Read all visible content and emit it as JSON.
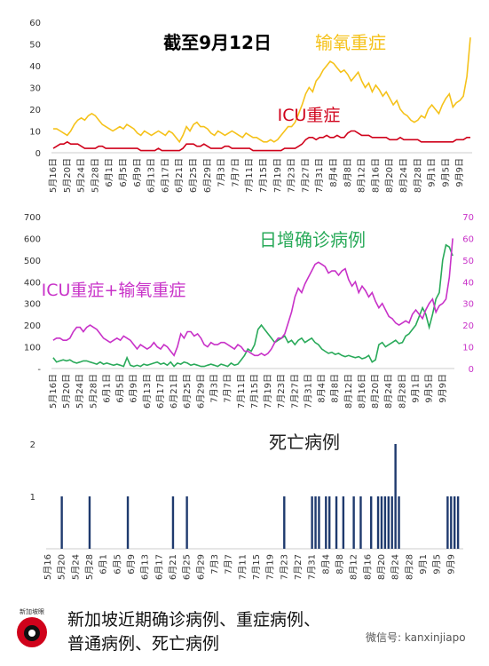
{
  "chart_data": [
    {
      "type": "line",
      "annotations": [
        "截至9月12日",
        "输氧重症",
        "ICU重症"
      ],
      "categories": [
        "5月16日",
        null,
        null,
        null,
        "5月20日",
        null,
        null,
        null,
        "5月24日",
        null,
        null,
        null,
        "5月28日",
        null,
        null,
        null,
        "6月1日",
        null,
        null,
        null,
        "6月5日",
        null,
        null,
        null,
        "6月9日",
        null,
        null,
        null,
        "6月13日",
        null,
        null,
        null,
        "6月17日",
        null,
        null,
        null,
        "6月21日",
        null,
        null,
        null,
        "6月25日",
        null,
        null,
        null,
        "6月29日",
        null,
        null,
        null,
        "7月3日",
        null,
        null,
        null,
        "7月7日",
        null,
        null,
        null,
        "7月11日",
        null,
        null,
        null,
        "7月15日",
        null,
        null,
        null,
        "7月19日",
        null,
        null,
        null,
        "7月23日",
        null,
        null,
        null,
        "7月27日",
        null,
        null,
        null,
        "7月31日",
        null,
        null,
        null,
        "8月4日",
        null,
        null,
        null,
        "8月8日",
        null,
        null,
        null,
        "8月12日",
        null,
        null,
        null,
        "8月16日",
        null,
        null,
        null,
        "8月20日",
        null,
        null,
        null,
        "8月24日",
        null,
        null,
        null,
        "8月28日",
        null,
        null,
        null,
        "9月1日",
        null,
        null,
        null,
        "9月5日",
        null,
        null,
        null,
        "9月9日",
        null,
        null,
        null
      ],
      "ylim": [
        0,
        60
      ],
      "yticks": [
        0,
        10,
        20,
        30,
        40,
        50,
        60
      ],
      "series": [
        {
          "name": "输氧重症",
          "color": "#f5c21b",
          "values": [
            11,
            11,
            10,
            9,
            8,
            10,
            13,
            15,
            16,
            15,
            17,
            18,
            17,
            15,
            13,
            12,
            11,
            10,
            11,
            12,
            11,
            13,
            12,
            11,
            9,
            8,
            10,
            9,
            8,
            9,
            10,
            9,
            8,
            10,
            9,
            7,
            5,
            8,
            12,
            10,
            13,
            14,
            12,
            12,
            11,
            9,
            8,
            10,
            9,
            8,
            9,
            10,
            9,
            8,
            7,
            9,
            8,
            7,
            7,
            6,
            5,
            5,
            6,
            5,
            6,
            8,
            10,
            12,
            12,
            14,
            18,
            22,
            27,
            30,
            28,
            33,
            35,
            38,
            40,
            42,
            41,
            39,
            37,
            38,
            36,
            33,
            35,
            37,
            33,
            30,
            32,
            28,
            31,
            29,
            26,
            28,
            25,
            22,
            24,
            20,
            18,
            17,
            15,
            14,
            15,
            17,
            16,
            20,
            22,
            20,
            18,
            22,
            25,
            27,
            21,
            23,
            24,
            26,
            35,
            53
          ]
        },
        {
          "name": "ICU重症",
          "color": "#d0021b",
          "values": [
            2,
            3,
            4,
            4,
            5,
            4,
            4,
            4,
            3,
            2,
            2,
            2,
            2,
            3,
            3,
            2,
            2,
            2,
            2,
            2,
            2,
            2,
            2,
            2,
            2,
            1,
            1,
            1,
            1,
            1,
            2,
            1,
            1,
            1,
            1,
            1,
            1,
            2,
            4,
            4,
            4,
            3,
            3,
            4,
            3,
            2,
            2,
            2,
            2,
            3,
            3,
            2,
            2,
            2,
            2,
            2,
            2,
            1,
            1,
            1,
            1,
            1,
            1,
            1,
            1,
            1,
            2,
            2,
            2,
            2,
            3,
            4,
            6,
            7,
            7,
            6,
            7,
            7,
            8,
            7,
            7,
            8,
            7,
            7,
            9,
            10,
            10,
            9,
            8,
            8,
            8,
            7,
            7,
            7,
            7,
            7,
            6,
            6,
            6,
            7,
            6,
            6,
            6,
            6,
            6,
            5,
            5,
            5,
            5,
            5,
            5,
            5,
            5,
            5,
            5,
            6,
            6,
            6,
            7,
            7
          ]
        }
      ]
    },
    {
      "type": "line",
      "annotations": [
        "日增确诊病例",
        "ICU重症+输氧重症"
      ],
      "categories": [
        "5月16日",
        null,
        null,
        null,
        "5月20日",
        null,
        null,
        null,
        "5月24日",
        null,
        null,
        null,
        "5月28日",
        null,
        null,
        null,
        "6月1日",
        null,
        null,
        null,
        "6月5日",
        null,
        null,
        null,
        "6月9日",
        null,
        null,
        null,
        "6月13日",
        null,
        null,
        null,
        "6月17日",
        null,
        null,
        null,
        "6月21日",
        null,
        null,
        null,
        "6月25日",
        null,
        null,
        null,
        "6月29日",
        null,
        null,
        null,
        "7月3日",
        null,
        null,
        null,
        "7月7日",
        null,
        null,
        null,
        "7月11日",
        null,
        null,
        null,
        "7月15日",
        null,
        null,
        null,
        "7月19日",
        null,
        null,
        null,
        "7月23日",
        null,
        null,
        null,
        "7月27日",
        null,
        null,
        null,
        "7月31日",
        null,
        null,
        null,
        "8月4日",
        null,
        null,
        null,
        "8月8日",
        null,
        null,
        null,
        "8月12日",
        null,
        null,
        null,
        "8月16日",
        null,
        null,
        null,
        "8月20日",
        null,
        null,
        null,
        "8月24日",
        null,
        null,
        null,
        "8月28日",
        null,
        null,
        null,
        "9月1日",
        null,
        null,
        null,
        "9月5日",
        null,
        null,
        null,
        "9月9日",
        null,
        null,
        null
      ],
      "ylim": [
        0,
        700
      ],
      "yticks": [
        {
          "value": 0,
          "label": "-"
        },
        100,
        200,
        300,
        400,
        500,
        600,
        700
      ],
      "y2lim": [
        0,
        70
      ],
      "y2ticks": [
        0,
        10,
        20,
        30,
        40,
        50,
        60,
        70
      ],
      "series": [
        {
          "name": "日增确诊病例",
          "color": "#2aaa5a",
          "values": [
            50,
            30,
            35,
            40,
            35,
            40,
            30,
            25,
            30,
            35,
            35,
            30,
            25,
            20,
            30,
            20,
            25,
            20,
            15,
            20,
            15,
            10,
            50,
            15,
            10,
            15,
            10,
            20,
            15,
            20,
            25,
            30,
            20,
            25,
            15,
            30,
            10,
            25,
            20,
            30,
            25,
            15,
            20,
            15,
            10,
            10,
            15,
            20,
            15,
            10,
            20,
            15,
            10,
            25,
            15,
            20,
            40,
            60,
            90,
            80,
            110,
            180,
            200,
            180,
            160,
            140,
            120,
            130,
            140,
            150,
            120,
            130,
            110,
            130,
            140,
            120,
            130,
            140,
            120,
            110,
            90,
            80,
            70,
            75,
            65,
            70,
            60,
            55,
            60,
            55,
            50,
            55,
            45,
            50,
            60,
            30,
            40,
            110,
            120,
            100,
            110,
            120,
            130,
            115,
            120,
            150,
            160,
            180,
            200,
            240,
            280,
            250,
            190,
            250,
            320,
            350,
            500,
            570,
            560,
            520
          ]
        },
        {
          "name": "ICU重症+输氧重症",
          "color": "#c832c8",
          "axis": "y2",
          "values": [
            13,
            14,
            14,
            13,
            13,
            14,
            17,
            19,
            19,
            17,
            19,
            20,
            19,
            18,
            16,
            14,
            13,
            12,
            13,
            14,
            13,
            15,
            14,
            13,
            11,
            9,
            11,
            10,
            9,
            10,
            12,
            10,
            9,
            11,
            10,
            8,
            6,
            10,
            16,
            14,
            17,
            17,
            15,
            16,
            14,
            11,
            10,
            12,
            11,
            11,
            12,
            12,
            11,
            10,
            9,
            11,
            10,
            8,
            8,
            7,
            6,
            6,
            7,
            6,
            7,
            9,
            12,
            14,
            14,
            16,
            21,
            26,
            33,
            37,
            35,
            39,
            42,
            45,
            48,
            49,
            48,
            47,
            44,
            45,
            45,
            43,
            45,
            46,
            41,
            38,
            40,
            35,
            38,
            36,
            33,
            35,
            31,
            28,
            30,
            27,
            24,
            23,
            21,
            20,
            21,
            22,
            21,
            25,
            27,
            25,
            23,
            27,
            30,
            32,
            26,
            29,
            30,
            32,
            42,
            60
          ]
        }
      ]
    },
    {
      "type": "bar",
      "annotations": [
        "死亡病例"
      ],
      "categories": [
        "5月16",
        null,
        null,
        null,
        "5月20",
        null,
        null,
        null,
        "5月24",
        null,
        null,
        null,
        "5月28",
        null,
        null,
        null,
        "6月1",
        null,
        null,
        null,
        "6月5",
        null,
        null,
        null,
        "6月9",
        null,
        null,
        null,
        "6月13",
        null,
        null,
        null,
        "6月17",
        null,
        null,
        null,
        "6月21",
        null,
        null,
        null,
        "6月25",
        null,
        null,
        null,
        "6月29",
        null,
        null,
        null,
        "7月3",
        null,
        null,
        null,
        "7月7",
        null,
        null,
        null,
        "7月11",
        null,
        null,
        null,
        "7月15",
        null,
        null,
        null,
        "7月19",
        null,
        null,
        null,
        "7月23",
        null,
        null,
        null,
        "7月27",
        null,
        null,
        null,
        "7月31",
        null,
        null,
        null,
        "8月4",
        null,
        null,
        null,
        "8月8",
        null,
        null,
        null,
        "8月12",
        null,
        null,
        null,
        "8月16",
        null,
        null,
        null,
        "8月20",
        null,
        null,
        null,
        "8月24",
        null,
        null,
        null,
        "8月28",
        null,
        null,
        null,
        "9月1",
        null,
        null,
        null,
        "9月5",
        null,
        null,
        null,
        "9月9",
        null,
        null,
        null
      ],
      "ylim": [
        0,
        2
      ],
      "yticks": [
        1,
        2
      ],
      "series": [
        {
          "name": "死亡病例",
          "color": "#1f3a6e",
          "values": [
            0,
            0,
            0,
            0,
            1,
            0,
            0,
            0,
            0,
            0,
            0,
            0,
            1,
            0,
            0,
            0,
            0,
            0,
            0,
            0,
            0,
            0,
            0,
            1,
            0,
            0,
            0,
            0,
            0,
            0,
            0,
            0,
            0,
            0,
            0,
            0,
            1,
            0,
            0,
            0,
            1,
            0,
            0,
            0,
            0,
            0,
            0,
            0,
            0,
            0,
            0,
            0,
            0,
            0,
            0,
            0,
            0,
            0,
            0,
            0,
            0,
            0,
            0,
            0,
            0,
            0,
            0,
            0,
            1,
            0,
            0,
            0,
            0,
            0,
            0,
            0,
            1,
            1,
            1,
            0,
            1,
            1,
            0,
            1,
            0,
            1,
            0,
            0,
            1,
            0,
            1,
            0,
            0,
            1,
            0,
            1,
            1,
            1,
            1,
            1,
            2,
            1,
            0,
            0,
            0,
            0,
            0,
            0,
            0,
            0,
            0,
            0,
            0,
            0,
            0,
            1,
            1,
            1,
            1,
            0
          ]
        }
      ]
    }
  ],
  "footer": {
    "logo": "新加坡眼",
    "caption": [
      "新加坡近期确诊病例、重症病例、",
      "普通病例、死亡病例"
    ],
    "wechat": "微信号: kanxinjiapo"
  }
}
